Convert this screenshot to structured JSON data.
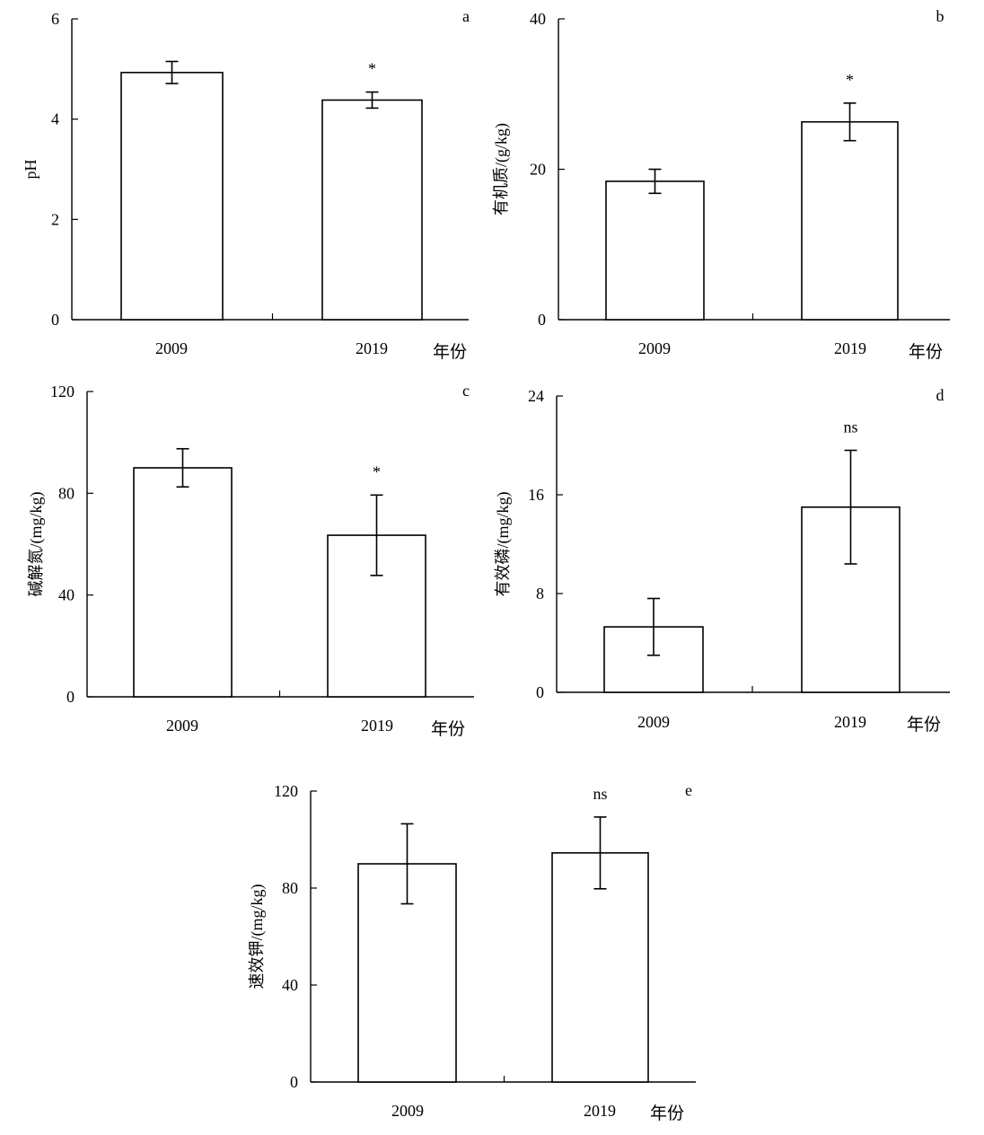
{
  "chart_data": [
    {
      "type": "bar",
      "panel": "a",
      "categories": [
        "2009",
        "2019"
      ],
      "values": [
        4.93,
        4.38
      ],
      "errors": [
        0.22,
        0.16
      ],
      "significance": [
        "",
        "*"
      ],
      "ylabel": "pH",
      "xlabel": "年份",
      "ylim": [
        0,
        6
      ],
      "yticks": [
        "0",
        "2",
        "4",
        "6"
      ]
    },
    {
      "type": "bar",
      "panel": "b",
      "categories": [
        "2009",
        "2019"
      ],
      "values": [
        18.4,
        26.3
      ],
      "errors": [
        1.6,
        2.5
      ],
      "significance": [
        "",
        "*"
      ],
      "ylabel": "有机质/(g/kg)",
      "xlabel": "年份",
      "ylim": [
        0,
        40
      ],
      "yticks": [
        "0",
        "20",
        "40"
      ]
    },
    {
      "type": "bar",
      "panel": "c",
      "categories": [
        "2009",
        "2019"
      ],
      "values": [
        90.0,
        63.5
      ],
      "errors": [
        7.5,
        15.8
      ],
      "significance": [
        "",
        "*"
      ],
      "ylabel": "碱解氮/(mg/kg)",
      "xlabel": "年份",
      "ylim": [
        0,
        120
      ],
      "yticks": [
        "0",
        "40",
        "80",
        "120"
      ]
    },
    {
      "type": "bar",
      "panel": "d",
      "categories": [
        "2009",
        "2019"
      ],
      "values": [
        5.3,
        15.0
      ],
      "errors": [
        2.3,
        4.6
      ],
      "significance": [
        "",
        "ns"
      ],
      "ylabel": "有效磷/(mg/kg)",
      "xlabel": "年份",
      "ylim": [
        0,
        24
      ],
      "yticks": [
        "0",
        "8",
        "16",
        "24"
      ]
    },
    {
      "type": "bar",
      "panel": "e",
      "categories": [
        "2009",
        "2019"
      ],
      "values": [
        90.0,
        94.5
      ],
      "errors": [
        16.5,
        14.8
      ],
      "significance": [
        "",
        "ns"
      ],
      "ylabel": "速效钾/(mg/kg)",
      "xlabel": "年份",
      "ylim": [
        0,
        120
      ],
      "yticks": [
        "0",
        "40",
        "80",
        "120"
      ]
    }
  ]
}
